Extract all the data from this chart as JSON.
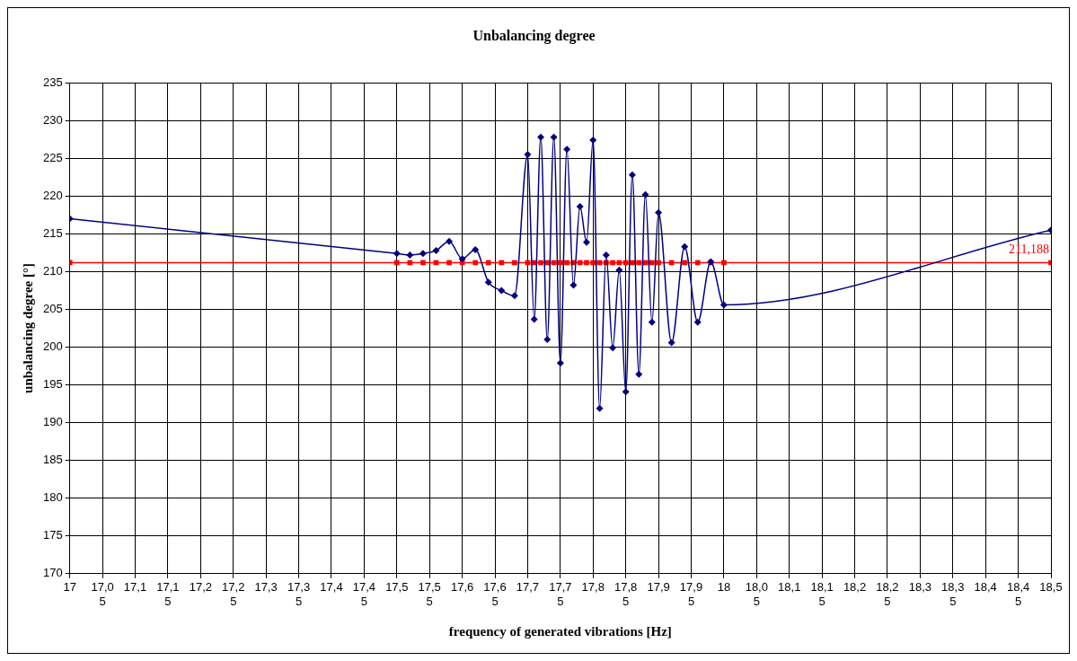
{
  "chart_data": {
    "type": "line",
    "title": "Unbalancing degree",
    "xlabel": "frequency of generated vibrations [Hz]",
    "ylabel": "unbalancing degree [°]",
    "xlim": [
      17,
      18.5
    ],
    "xticks": [
      17,
      {
        "value": 17.05,
        "label": "17,05"
      },
      {
        "value": 17.1,
        "label": "17,1"
      },
      {
        "value": 17.15,
        "label": "17,15"
      },
      {
        "value": 17.2,
        "label": "17,2"
      },
      {
        "value": 17.25,
        "label": "17,25"
      },
      {
        "value": 17.3,
        "label": "17,3"
      },
      {
        "value": 17.35,
        "label": "17,35"
      },
      {
        "value": 17.4,
        "label": "17,4"
      },
      {
        "value": 17.45,
        "label": "17,45"
      },
      {
        "value": 17.5,
        "label": "17,5"
      },
      {
        "value": 17.55,
        "label": "17,55"
      },
      {
        "value": 17.6,
        "label": "17,6"
      },
      {
        "value": 17.65,
        "label": "17,65"
      },
      {
        "value": 17.7,
        "label": "17,7"
      },
      {
        "value": 17.75,
        "label": "17,75"
      },
      {
        "value": 17.8,
        "label": "17,8"
      },
      {
        "value": 17.85,
        "label": "17,85"
      },
      {
        "value": 17.9,
        "label": "17,9"
      },
      {
        "value": 17.95,
        "label": "17,95"
      },
      18,
      {
        "value": 18.05,
        "label": "18,05"
      },
      {
        "value": 18.1,
        "label": "18,1"
      },
      {
        "value": 18.15,
        "label": "18,15"
      },
      {
        "value": 18.2,
        "label": "18,2"
      },
      {
        "value": 18.25,
        "label": "18,25"
      },
      {
        "value": 18.3,
        "label": "18,3"
      },
      {
        "value": 18.35,
        "label": "18,35"
      },
      {
        "value": 18.4,
        "label": "18,4"
      },
      {
        "value": 18.45,
        "label": "18,45"
      },
      {
        "value": 18.5,
        "label": "18,5"
      }
    ],
    "ylim": [
      170,
      235
    ],
    "yticks": [
      170,
      175,
      180,
      185,
      190,
      195,
      200,
      205,
      210,
      215,
      220,
      225,
      230,
      235
    ],
    "grid": true,
    "legend": false,
    "line_style": "solid",
    "series": [
      {
        "color": "#000080",
        "marker": "diamond",
        "x": [
          17,
          17.5,
          17.52,
          17.54,
          17.56,
          17.58,
          17.6,
          17.62,
          17.64,
          17.66,
          17.68,
          17.7,
          17.71,
          17.72,
          17.73,
          17.74,
          17.75,
          17.76,
          17.77,
          17.78,
          17.79,
          17.8,
          17.81,
          17.82,
          17.83,
          17.84,
          17.85,
          17.86,
          17.87,
          17.88,
          17.89,
          17.9,
          17.92,
          17.94,
          17.96,
          17.98,
          18,
          18.5
        ],
        "values": [
          217.0,
          212.4,
          212.2,
          212.4,
          212.8,
          214.0,
          211.7,
          212.9,
          208.6,
          207.5,
          206.8,
          225.5,
          203.7,
          227.8,
          201.0,
          227.8,
          197.9,
          226.2,
          208.2,
          218.6,
          213.9,
          227.4,
          191.9,
          212.2,
          199.9,
          210.2,
          194.1,
          222.8,
          196.4,
          220.2,
          203.3,
          217.8,
          200.6,
          213.3,
          203.3,
          211.3,
          205.6,
          215.5
        ]
      },
      {
        "color": "#ff0000",
        "marker": "square",
        "x": [
          17,
          17.5,
          17.52,
          17.54,
          17.56,
          17.58,
          17.6,
          17.62,
          17.64,
          17.66,
          17.68,
          17.7,
          17.71,
          17.72,
          17.73,
          17.74,
          17.75,
          17.76,
          17.77,
          17.78,
          17.79,
          17.8,
          17.81,
          17.82,
          17.83,
          17.84,
          17.85,
          17.86,
          17.87,
          17.88,
          17.89,
          17.9,
          17.92,
          17.94,
          17.96,
          17.98,
          18,
          18.5
        ],
        "values": [
          211.188,
          211.188,
          211.188,
          211.188,
          211.188,
          211.188,
          211.188,
          211.188,
          211.188,
          211.188,
          211.188,
          211.188,
          211.188,
          211.188,
          211.188,
          211.188,
          211.188,
          211.188,
          211.188,
          211.188,
          211.188,
          211.188,
          211.188,
          211.188,
          211.188,
          211.188,
          211.188,
          211.188,
          211.188,
          211.188,
          211.188,
          211.188,
          211.188,
          211.188,
          211.188,
          211.188,
          211.188,
          211.188
        ]
      }
    ],
    "annotations": [
      {
        "text": "211,188",
        "x": 18.5,
        "y": 211.188
      }
    ]
  }
}
